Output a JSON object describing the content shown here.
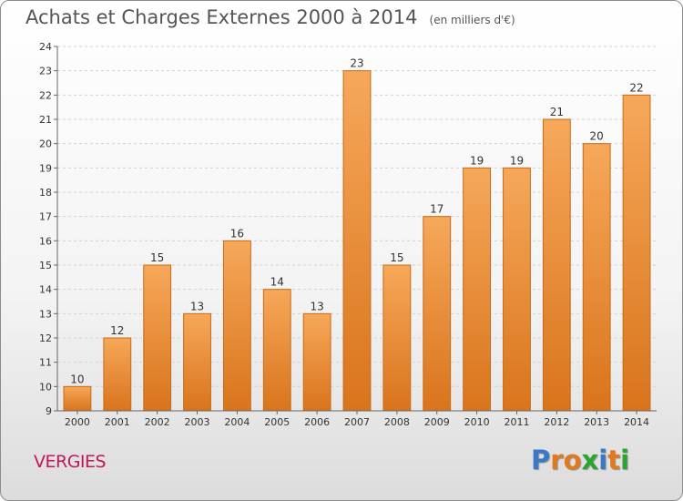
{
  "header": {
    "title": "Achats et Charges Externes 2000 à 2014",
    "subtitle": "(en milliers d'€)"
  },
  "footer": {
    "commune": "VERGIES",
    "logo_text": "Proxiti",
    "logo_colors": [
      "#3a78c8",
      "#e07a1e",
      "#e07a1e",
      "#2aa532",
      "#3a78c8",
      "#e07a1e",
      "#2aa532"
    ]
  },
  "chart_data": {
    "type": "bar",
    "title": "Achats et Charges Externes 2000 à 2014",
    "subtitle": "(en milliers d'€)",
    "categories": [
      "2000",
      "2001",
      "2002",
      "2003",
      "2004",
      "2005",
      "2006",
      "2007",
      "2008",
      "2009",
      "2010",
      "2011",
      "2012",
      "2013",
      "2014"
    ],
    "values": [
      10,
      12,
      15,
      13,
      16,
      14,
      13,
      23,
      15,
      17,
      19,
      19,
      21,
      20,
      22
    ],
    "ylim": [
      9,
      24
    ],
    "yticks": [
      9,
      10,
      11,
      12,
      13,
      14,
      15,
      16,
      17,
      18,
      19,
      20,
      21,
      22,
      23,
      24
    ],
    "xlabel": "",
    "ylabel": "",
    "grid": true,
    "bar_color_top": "#f6a85a",
    "bar_color_bottom": "#d9741c",
    "bar_edge_color": "#c96a18"
  }
}
